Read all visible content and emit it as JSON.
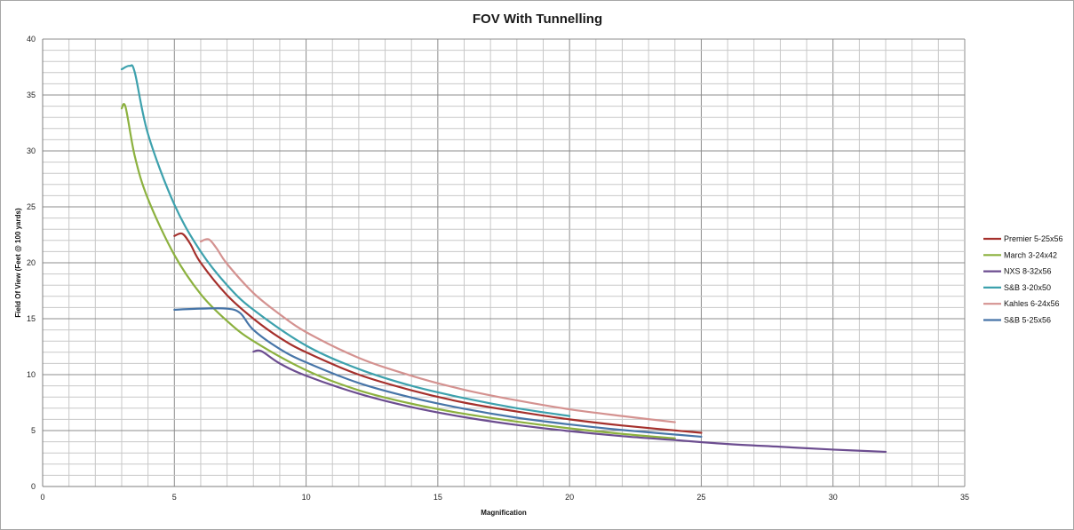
{
  "chart_data": {
    "type": "line",
    "title": "FOV With Tunnelling",
    "xlabel": "Magnification",
    "ylabel": "Field Of View (Feet @ 100 yards)",
    "xlim": [
      0,
      35
    ],
    "ylim": [
      0,
      40
    ],
    "x_ticks": [
      "0",
      "5",
      "10",
      "15",
      "20",
      "25",
      "30",
      "35"
    ],
    "y_ticks": [
      "0",
      "5",
      "10",
      "15",
      "20",
      "25",
      "30",
      "35",
      "40"
    ],
    "x_minor_step": 1,
    "y_minor_step": 1,
    "grid": true,
    "legend_position": "right",
    "series": [
      {
        "name": "Premier 5-25x56",
        "color": "#a5302c",
        "points": [
          [
            5,
            22.4
          ],
          [
            5.3,
            22.6
          ],
          [
            5.6,
            21.7
          ],
          [
            6,
            20.0
          ],
          [
            7,
            17.1
          ],
          [
            8,
            15.0
          ],
          [
            9,
            13.3
          ],
          [
            10,
            12.0
          ],
          [
            12,
            10.0
          ],
          [
            14,
            8.6
          ],
          [
            16,
            7.5
          ],
          [
            18,
            6.7
          ],
          [
            20,
            6.0
          ],
          [
            22,
            5.45
          ],
          [
            25,
            4.8
          ]
        ]
      },
      {
        "name": "March 3-24x42",
        "color": "#8cb13f",
        "points": [
          [
            3,
            33.8
          ],
          [
            3.15,
            33.9
          ],
          [
            3.5,
            29.5
          ],
          [
            4,
            25.7
          ],
          [
            5,
            20.7
          ],
          [
            6,
            17.2
          ],
          [
            7,
            14.8
          ],
          [
            8,
            13.0
          ],
          [
            10,
            10.4
          ],
          [
            12,
            8.6
          ],
          [
            14,
            7.4
          ],
          [
            16,
            6.5
          ],
          [
            18,
            5.8
          ],
          [
            20,
            5.2
          ],
          [
            22,
            4.7
          ],
          [
            24,
            4.3
          ]
        ]
      },
      {
        "name": "NXS 8-32x56",
        "color": "#6c4d90",
        "points": [
          [
            8,
            12.05
          ],
          [
            8.3,
            12.1
          ],
          [
            9,
            11.0
          ],
          [
            10,
            9.9
          ],
          [
            12,
            8.3
          ],
          [
            14,
            7.1
          ],
          [
            16,
            6.2
          ],
          [
            18,
            5.5
          ],
          [
            20,
            4.95
          ],
          [
            22,
            4.5
          ],
          [
            24,
            4.15
          ],
          [
            26,
            3.8
          ],
          [
            28,
            3.55
          ],
          [
            30,
            3.3
          ],
          [
            32,
            3.1
          ]
        ]
      },
      {
        "name": "S&B 3-20x50",
        "color": "#3da1ad",
        "points": [
          [
            3,
            37.3
          ],
          [
            3.3,
            37.6
          ],
          [
            3.5,
            37.0
          ],
          [
            4,
            31.5
          ],
          [
            5,
            25.2
          ],
          [
            6,
            21.0
          ],
          [
            7,
            18.0
          ],
          [
            8,
            15.8
          ],
          [
            10,
            12.6
          ],
          [
            12,
            10.5
          ],
          [
            14,
            9.0
          ],
          [
            16,
            7.9
          ],
          [
            18,
            7.0
          ],
          [
            20,
            6.3
          ]
        ]
      },
      {
        "name": "Kahles 6-24x56",
        "color": "#d49290",
        "points": [
          [
            6,
            21.9
          ],
          [
            6.3,
            22.1
          ],
          [
            6.6,
            21.3
          ],
          [
            7,
            19.9
          ],
          [
            8,
            17.3
          ],
          [
            9,
            15.4
          ],
          [
            10,
            13.8
          ],
          [
            12,
            11.5
          ],
          [
            14,
            9.9
          ],
          [
            16,
            8.65
          ],
          [
            18,
            7.7
          ],
          [
            20,
            6.9
          ],
          [
            22,
            6.3
          ],
          [
            24,
            5.75
          ]
        ]
      },
      {
        "name": "S&B 5-25x56",
        "color": "#4775a8",
        "points": [
          [
            5,
            15.8
          ],
          [
            6,
            15.9
          ],
          [
            7,
            15.9
          ],
          [
            7.5,
            15.5
          ],
          [
            8,
            14.0
          ],
          [
            9,
            12.3
          ],
          [
            10,
            11.1
          ],
          [
            12,
            9.25
          ],
          [
            14,
            7.95
          ],
          [
            16,
            6.95
          ],
          [
            18,
            6.15
          ],
          [
            20,
            5.55
          ],
          [
            22,
            5.05
          ],
          [
            25,
            4.45
          ]
        ]
      }
    ]
  }
}
